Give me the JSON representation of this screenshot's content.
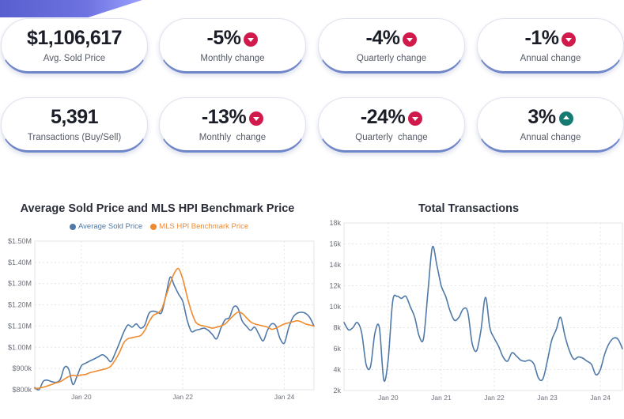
{
  "cards": [
    {
      "value": "$1,106,617",
      "label": "Avg. Sold Price",
      "arrow": ""
    },
    {
      "value": "-5%",
      "label": "Monthly change",
      "arrow": "down"
    },
    {
      "value": "-4%",
      "label": "Quarterly change",
      "arrow": "down"
    },
    {
      "value": "-1%",
      "label": "Annual change",
      "arrow": "down"
    },
    {
      "value": "5,391",
      "label": "Transactions (Buy/Sell)",
      "arrow": ""
    },
    {
      "value": "-13%",
      "label": "Monthly  change",
      "arrow": "down"
    },
    {
      "value": "-24%",
      "label": "Quarterly  change",
      "arrow": "down"
    },
    {
      "value": "3%",
      "label": "Annual change",
      "arrow": "up"
    }
  ],
  "colors": {
    "down": "#d11a4c",
    "up": "#157b72",
    "series1": "#4f79a8",
    "series2": "#ef8a2e"
  },
  "chart_data": [
    {
      "type": "line",
      "title": "Average Sold Price and MLS HPI Benchmark Price",
      "x_ticks": [
        "Jan 20",
        "Jan 22",
        "Jan 24"
      ],
      "y_ticks": [
        "$800k",
        "$900k",
        "$1.00M",
        "$1.10M",
        "$1.20M",
        "$1.30M",
        "$1.40M",
        "$1.50M"
      ],
      "ylim": [
        800000,
        1500000
      ],
      "x_range": [
        "2019-02",
        "2024-08"
      ],
      "legend_position": "top",
      "grid": true,
      "series": [
        {
          "name": "Average Sold Price",
          "x": [
            "2019-02",
            "2019-03",
            "2019-04",
            "2019-05",
            "2019-06",
            "2019-07",
            "2019-08",
            "2019-09",
            "2019-10",
            "2019-11",
            "2019-12",
            "2020-01",
            "2020-02",
            "2020-03",
            "2020-04",
            "2020-05",
            "2020-06",
            "2020-07",
            "2020-08",
            "2020-09",
            "2020-10",
            "2020-11",
            "2020-12",
            "2021-01",
            "2021-02",
            "2021-03",
            "2021-04",
            "2021-05",
            "2021-06",
            "2021-07",
            "2021-08",
            "2021-09",
            "2021-10",
            "2021-11",
            "2021-12",
            "2022-01",
            "2022-02",
            "2022-03",
            "2022-04",
            "2022-05",
            "2022-06",
            "2022-07",
            "2022-08",
            "2022-09",
            "2022-10",
            "2022-11",
            "2022-12",
            "2023-01",
            "2023-02",
            "2023-03",
            "2023-04",
            "2023-05",
            "2023-06",
            "2023-07",
            "2023-08",
            "2023-09",
            "2023-10",
            "2023-11",
            "2023-12",
            "2024-01",
            "2024-02",
            "2024-03",
            "2024-04",
            "2024-05",
            "2024-06",
            "2024-07",
            "2024-08"
          ],
          "values": [
            810000,
            800000,
            840000,
            845000,
            838000,
            835000,
            848000,
            905000,
            898000,
            825000,
            865000,
            912000,
            925000,
            935000,
            945000,
            955000,
            965000,
            952000,
            932000,
            972000,
            1020000,
            1070000,
            1105000,
            1095000,
            1110000,
            1090000,
            1105000,
            1160000,
            1170000,
            1165000,
            1165000,
            1245000,
            1330000,
            1290000,
            1250000,
            1215000,
            1130000,
            1075000,
            1080000,
            1085000,
            1090000,
            1080000,
            1060000,
            1040000,
            1090000,
            1130000,
            1140000,
            1190000,
            1185000,
            1125000,
            1100000,
            1080000,
            1095000,
            1060000,
            1030000,
            1080000,
            1110000,
            1100000,
            1040000,
            1020000,
            1090000,
            1140000,
            1160000,
            1165000,
            1160000,
            1140000,
            1100000
          ]
        },
        {
          "name": "MLS HPI Benchmark Price",
          "x": [
            "2019-02",
            "2019-03",
            "2019-04",
            "2019-05",
            "2019-06",
            "2019-07",
            "2019-08",
            "2019-09",
            "2019-10",
            "2019-11",
            "2019-12",
            "2020-01",
            "2020-02",
            "2020-03",
            "2020-04",
            "2020-05",
            "2020-06",
            "2020-07",
            "2020-08",
            "2020-09",
            "2020-10",
            "2020-11",
            "2020-12",
            "2021-01",
            "2021-02",
            "2021-03",
            "2021-04",
            "2021-05",
            "2021-06",
            "2021-07",
            "2021-08",
            "2021-09",
            "2021-10",
            "2021-11",
            "2021-12",
            "2022-01",
            "2022-02",
            "2022-03",
            "2022-04",
            "2022-05",
            "2022-06",
            "2022-07",
            "2022-08",
            "2022-09",
            "2022-10",
            "2022-11",
            "2022-12",
            "2023-01",
            "2023-02",
            "2023-03",
            "2023-04",
            "2023-05",
            "2023-06",
            "2023-07",
            "2023-08",
            "2023-09",
            "2023-10",
            "2023-11",
            "2023-12",
            "2024-01",
            "2024-02",
            "2024-03",
            "2024-04",
            "2024-05",
            "2024-06",
            "2024-07",
            "2024-08"
          ],
          "values": [
            805000,
            808000,
            812000,
            818000,
            825000,
            832000,
            838000,
            850000,
            862000,
            868000,
            865000,
            870000,
            872000,
            880000,
            885000,
            890000,
            895000,
            900000,
            912000,
            940000,
            975000,
            1020000,
            1040000,
            1045000,
            1050000,
            1055000,
            1080000,
            1120000,
            1150000,
            1160000,
            1180000,
            1240000,
            1300000,
            1350000,
            1370000,
            1320000,
            1240000,
            1170000,
            1120000,
            1105000,
            1100000,
            1095000,
            1090000,
            1095000,
            1100000,
            1110000,
            1130000,
            1150000,
            1165000,
            1160000,
            1140000,
            1120000,
            1110000,
            1105000,
            1100000,
            1095000,
            1085000,
            1090000,
            1100000,
            1110000,
            1115000,
            1120000,
            1125000,
            1120000,
            1110000,
            1105000,
            1100000
          ]
        }
      ]
    },
    {
      "type": "line",
      "title": "Total Transactions",
      "x_ticks": [
        "Jan 20",
        "Jan 21",
        "Jan 22",
        "Jan 23",
        "Jan 24"
      ],
      "y_ticks": [
        "2k",
        "4k",
        "6k",
        "8k",
        "10k",
        "12k",
        "14k",
        "16k",
        "18k"
      ],
      "ylim": [
        2000,
        18000
      ],
      "x_range": [
        "2019-03",
        "2024-06"
      ],
      "grid": true,
      "series": [
        {
          "x": [
            "2019-03",
            "2019-04",
            "2019-05",
            "2019-06",
            "2019-07",
            "2019-08",
            "2019-09",
            "2019-10",
            "2019-11",
            "2019-12",
            "2020-01",
            "2020-02",
            "2020-03",
            "2020-04",
            "2020-05",
            "2020-06",
            "2020-07",
            "2020-08",
            "2020-09",
            "2020-10",
            "2020-11",
            "2020-12",
            "2021-01",
            "2021-02",
            "2021-03",
            "2021-04",
            "2021-05",
            "2021-06",
            "2021-07",
            "2021-08",
            "2021-09",
            "2021-10",
            "2021-11",
            "2021-12",
            "2022-01",
            "2022-02",
            "2022-03",
            "2022-04",
            "2022-05",
            "2022-06",
            "2022-07",
            "2022-08",
            "2022-09",
            "2022-10",
            "2022-11",
            "2022-12",
            "2023-01",
            "2023-02",
            "2023-03",
            "2023-04",
            "2023-05",
            "2023-06",
            "2023-07",
            "2023-08",
            "2023-09",
            "2023-10",
            "2023-11",
            "2023-12",
            "2024-01",
            "2024-02",
            "2024-03",
            "2024-04",
            "2024-05",
            "2024-06"
          ],
          "values": [
            8500,
            7800,
            8000,
            8500,
            7500,
            4500,
            4300,
            7500,
            8000,
            3000,
            5000,
            10500,
            11000,
            10800,
            11000,
            10000,
            9000,
            7200,
            7000,
            11500,
            15700,
            14000,
            12000,
            11000,
            9600,
            8700,
            9000,
            9800,
            9500,
            6500,
            5800,
            7800,
            10900,
            8000,
            7000,
            6200,
            5200,
            4800,
            5600,
            5300,
            4900,
            4800,
            4900,
            4500,
            3200,
            3100,
            4800,
            6800,
            7800,
            9000,
            7200,
            5800,
            5000,
            5200,
            5100,
            4800,
            4500,
            3500,
            4000,
            5500,
            6500,
            7000,
            6900,
            6000
          ]
        }
      ]
    }
  ]
}
